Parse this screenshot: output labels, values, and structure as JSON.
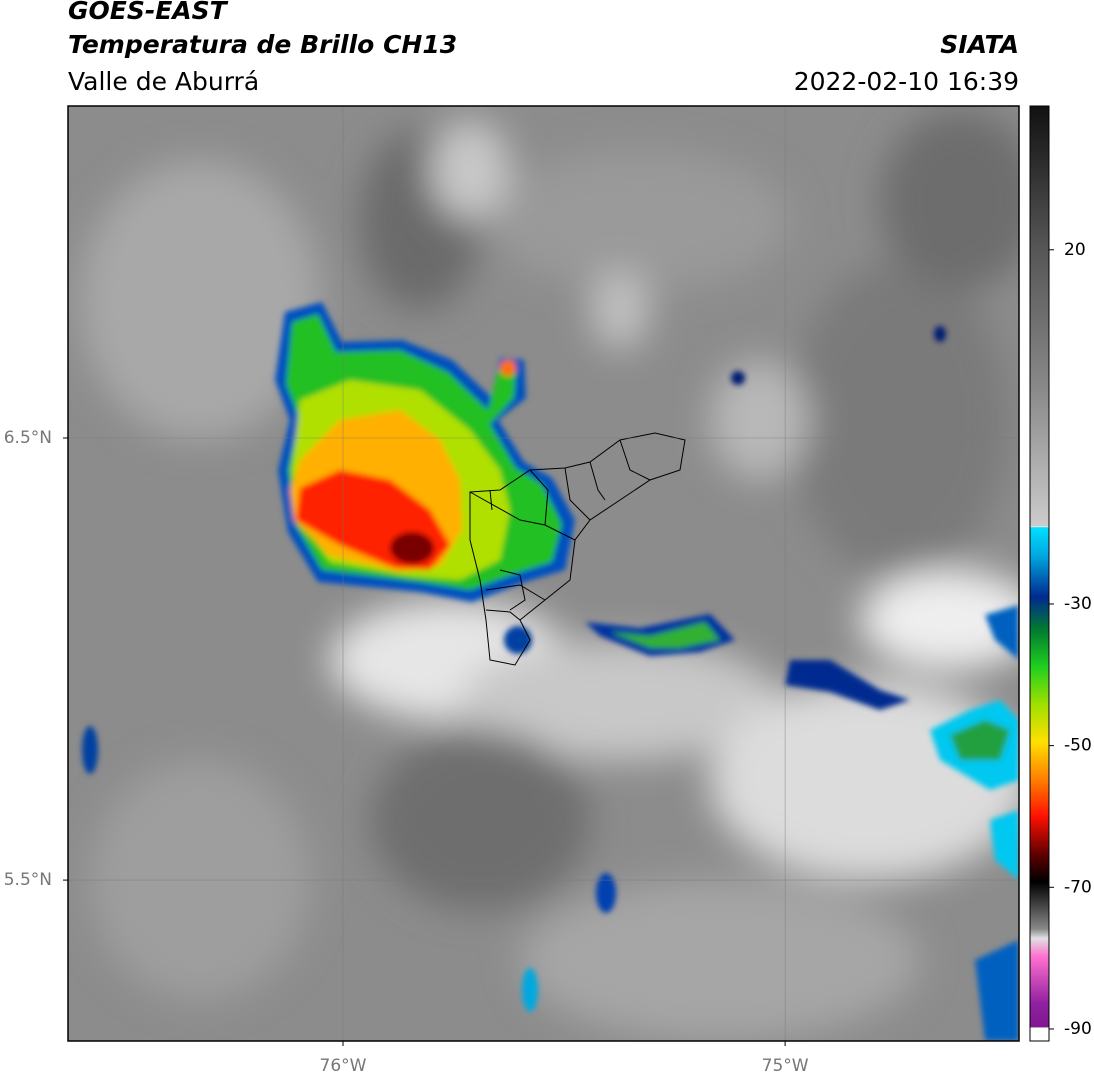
{
  "header": {
    "satellite": "GOES-EAST",
    "product": "Temperatura de Brillo CH13",
    "region": "Valle de Aburrá",
    "source": "SIATA",
    "datetime": "2022-02-10 16:39"
  },
  "map": {
    "lonlim": [
      -76.622,
      -74.471
    ],
    "latlim": [
      5.136,
      7.251
    ],
    "lon_ticks": [
      {
        "value": -76,
        "label": "76°W"
      },
      {
        "value": -75,
        "label": "75°W"
      }
    ],
    "lat_ticks": [
      {
        "value": 6.5,
        "label": "6.5°N"
      },
      {
        "value": 5.5,
        "label": "5.5°N"
      }
    ],
    "grid": true
  },
  "colorbar": {
    "lim": [
      -91.7,
      40.3
    ],
    "ticks": [
      20,
      -30,
      -50,
      -70,
      -90
    ]
  }
}
